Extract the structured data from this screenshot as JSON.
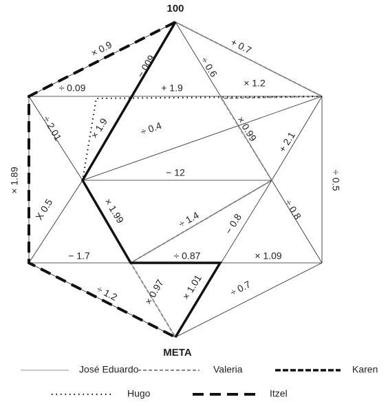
{
  "top_label": "100",
  "bottom_label": "META",
  "edge_labels": [
    "× 0.9",
    "+ 0.7",
    "÷ 0.6",
    "− 009",
    "÷ 0.09",
    "+ 1.9",
    "× 1.2",
    "× 1.9",
    "÷ 2.01",
    "÷ 0.4",
    "× 0.99",
    "+ 2.1",
    "× 1.89",
    "− 12",
    "÷ 0.5",
    "X 0.5",
    "× 1.99",
    "÷ 1.4",
    "− 0.8",
    "÷ 0.8",
    "− 1.7",
    "÷ 0.87",
    "× 1.09",
    "÷ 1.2",
    "× 0.97",
    "× 1.01",
    "÷ 0.7"
  ],
  "legend": [
    {
      "name": "José Eduardo"
    },
    {
      "name": "Valeria"
    },
    {
      "name": "Karen"
    },
    {
      "name": "Hugo"
    },
    {
      "name": "Itzel"
    }
  ]
}
